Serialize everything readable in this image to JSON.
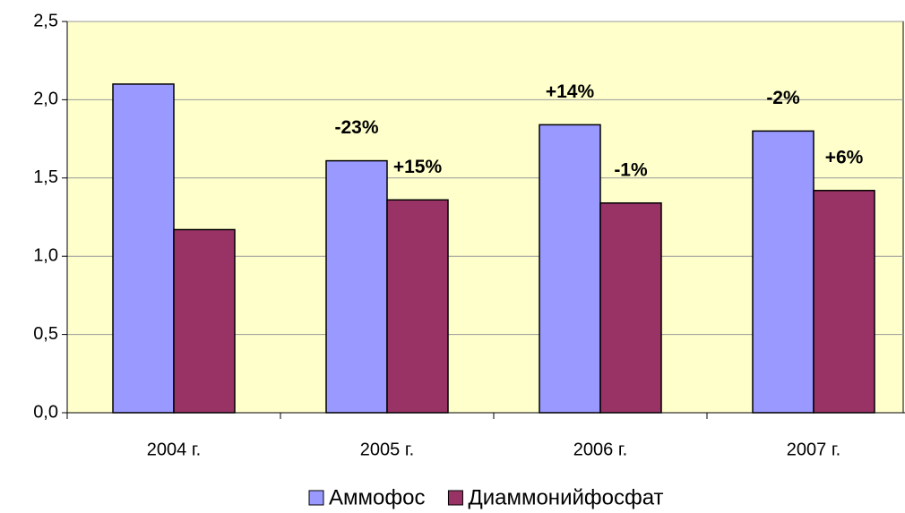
{
  "chart_data": {
    "type": "bar",
    "categories": [
      "2004 г.",
      "2005 г.",
      "2006 г.",
      "2007 г."
    ],
    "series": [
      {
        "name": "Аммофос",
        "color": "#9999ff",
        "values": [
          2.1,
          1.61,
          1.84,
          1.8
        ],
        "annotations": [
          null,
          "-23%",
          "+14%",
          "-2%"
        ]
      },
      {
        "name": "Диаммонийфосфат",
        "color": "#993366",
        "values": [
          1.17,
          1.36,
          1.34,
          1.42
        ],
        "annotations": [
          null,
          "+15%",
          "-1%",
          "+6%"
        ]
      }
    ],
    "ylim": [
      0,
      2.5
    ],
    "yticks": [
      {
        "value": 0,
        "label": "0,0"
      },
      {
        "value": 0.5,
        "label": "0,5"
      },
      {
        "value": 1,
        "label": "1,0"
      },
      {
        "value": 1.5,
        "label": "1,5"
      },
      {
        "value": 2,
        "label": "2,0"
      },
      {
        "value": 2.5,
        "label": "2,5"
      }
    ],
    "grid": true,
    "legend": "bottom",
    "plot_background": "#ffffcc"
  }
}
